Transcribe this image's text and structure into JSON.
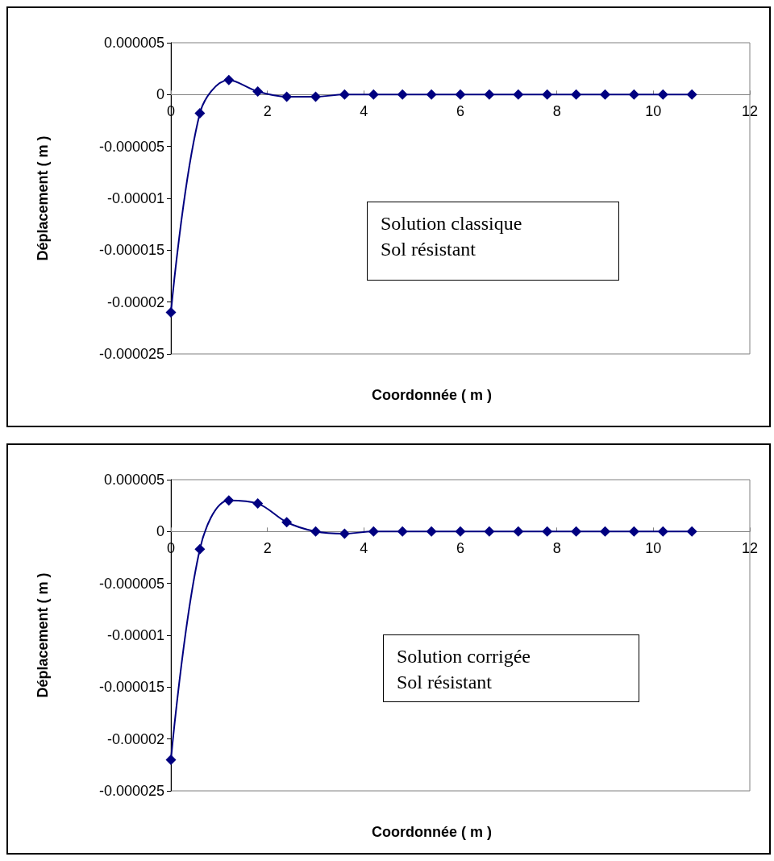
{
  "chart_data": [
    {
      "type": "line",
      "xlabel": "Coordonnée ( m )",
      "ylabel": "Déplacement ( m )",
      "annotations": [
        "Solution classique",
        "Sol résistant"
      ],
      "x": [
        0,
        0.6,
        1.2,
        1.8,
        2.4,
        3.0,
        3.6,
        4.2,
        4.8,
        5.4,
        6.0,
        6.6,
        7.2,
        7.8,
        8.4,
        9.0,
        9.6,
        10.2,
        10.8
      ],
      "series": [
        {
          "color": "#000080",
          "values": [
            -2.1e-05,
            -1.8e-06,
            1.4e-06,
            3e-07,
            -2e-07,
            -2e-07,
            0,
            0,
            0,
            0,
            0,
            0,
            0,
            0,
            0,
            0,
            0,
            0,
            0
          ]
        }
      ],
      "xlim": [
        0,
        12
      ],
      "xticks": [
        0,
        2,
        4,
        6,
        8,
        10,
        12
      ],
      "ylim": [
        -2.5e-05,
        5e-06
      ],
      "yticks": [
        {
          "value": -2.5e-05,
          "label": "-0.000025"
        },
        {
          "value": -2e-05,
          "label": "-0.00002"
        },
        {
          "value": -1.5e-05,
          "label": "-0.000015"
        },
        {
          "value": -1e-05,
          "label": "-0.00001"
        },
        {
          "value": -5e-06,
          "label": "-0.000005"
        },
        {
          "value": 0,
          "label": "0"
        },
        {
          "value": 5e-06,
          "label": "0.000005"
        }
      ],
      "marker": "diamond",
      "line_style": "solid"
    },
    {
      "type": "line",
      "xlabel": "Coordonnée ( m )",
      "ylabel": "Déplacement ( m )",
      "annotations": [
        "Solution corrigée",
        "Sol résistant"
      ],
      "x": [
        0,
        0.6,
        1.2,
        1.8,
        2.4,
        3.0,
        3.6,
        4.2,
        4.8,
        5.4,
        6.0,
        6.6,
        7.2,
        7.8,
        8.4,
        9.0,
        9.6,
        10.2,
        10.8
      ],
      "series": [
        {
          "color": "#000080",
          "values": [
            -2.2e-05,
            -1.7e-06,
            3e-06,
            2.7e-06,
            9e-07,
            0,
            -2e-07,
            0,
            0,
            0,
            0,
            0,
            0,
            0,
            0,
            0,
            0,
            0,
            0
          ]
        }
      ],
      "xlim": [
        0,
        12
      ],
      "xticks": [
        0,
        2,
        4,
        6,
        8,
        10,
        12
      ],
      "ylim": [
        -2.5e-05,
        5e-06
      ],
      "yticks": [
        {
          "value": -2.5e-05,
          "label": "-0.000025"
        },
        {
          "value": -2e-05,
          "label": "-0.00002"
        },
        {
          "value": -1.5e-05,
          "label": "-0.000015"
        },
        {
          "value": -1e-05,
          "label": "-0.00001"
        },
        {
          "value": -5e-06,
          "label": "-0.000005"
        },
        {
          "value": 0,
          "label": "0"
        },
        {
          "value": 5e-06,
          "label": "0.000005"
        }
      ],
      "marker": "diamond",
      "line_style": "solid"
    }
  ]
}
